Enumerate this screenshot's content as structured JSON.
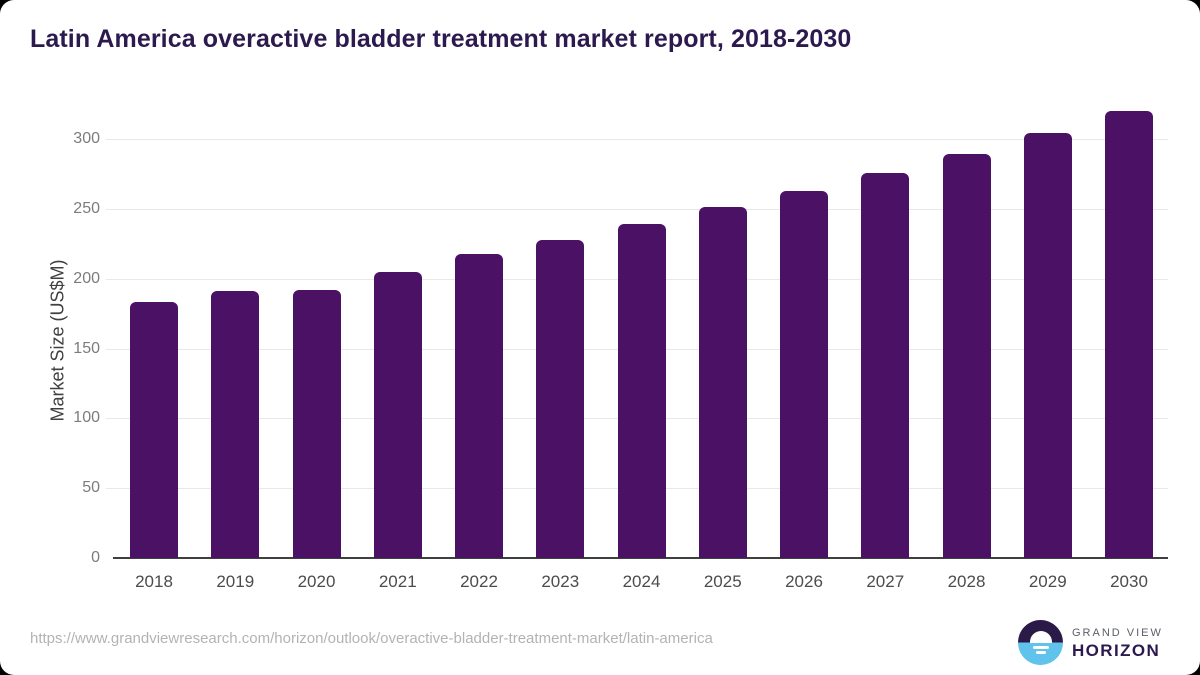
{
  "header": {
    "title": "Latin America overactive bladder treatment market report, 2018-2030"
  },
  "chart_data": {
    "type": "bar",
    "title": "Latin America overactive bladder treatment market report, 2018-2030",
    "categories": [
      "2018",
      "2019",
      "2020",
      "2021",
      "2022",
      "2023",
      "2024",
      "2025",
      "2026",
      "2027",
      "2028",
      "2029",
      "2030"
    ],
    "values": [
      183,
      191,
      192,
      205,
      218,
      228,
      239,
      251,
      263,
      276,
      289,
      304,
      320
    ],
    "xlabel": "",
    "ylabel": "Market Size (US$M)",
    "yticks": [
      0,
      50,
      100,
      150,
      200,
      250,
      300
    ],
    "ylim": [
      0,
      325
    ],
    "grid": "horizontal",
    "legend": "none",
    "bar_color": "#4a1165"
  },
  "footer": {
    "source_url": "https://www.grandviewresearch.com/horizon/outlook/overactive-bladder-treatment-market/latin-america",
    "logo": {
      "line1": "GRAND VIEW",
      "line2": "HORIZON",
      "icon": "horizon-sun-icon"
    }
  },
  "colors": {
    "bar": "#4a1165",
    "title": "#2c1a4e",
    "axis_line": "#3f3f3f",
    "tick_label": "#7c7c7c",
    "x_label": "#4c4c4c",
    "gridline": "#e8e8e8",
    "url_text": "#b3b3b3",
    "logo_navy": "#2a1a47",
    "logo_blue": "#5fc3ec",
    "logo_gray": "#5b5f66",
    "card_background": "#ffffff"
  }
}
